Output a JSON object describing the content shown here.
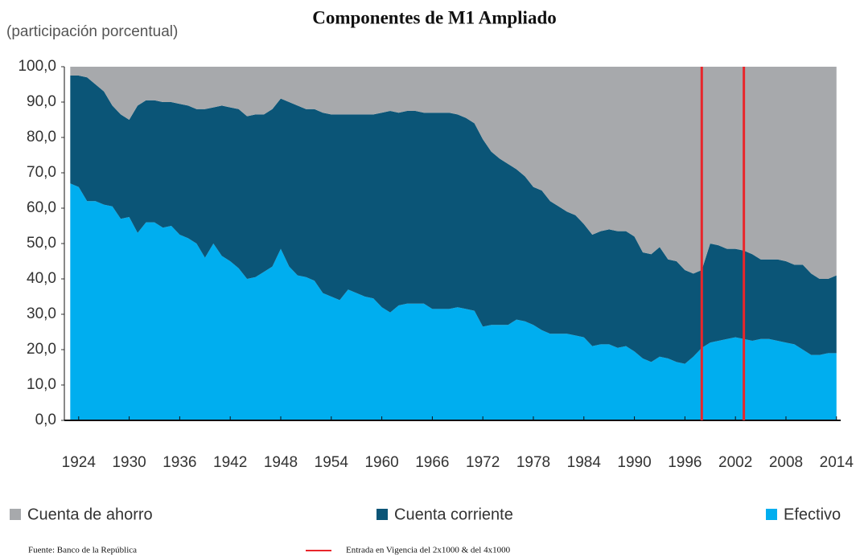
{
  "chart_data": {
    "type": "stacked-area",
    "title": "Componentes de M1 Ampliado",
    "subtitle": "(participación porcentual)",
    "source": "Fuente: Banco de la República",
    "x": [
      1923,
      1924,
      1925,
      1926,
      1927,
      1928,
      1929,
      1930,
      1931,
      1932,
      1933,
      1934,
      1935,
      1936,
      1937,
      1938,
      1939,
      1940,
      1941,
      1942,
      1943,
      1944,
      1945,
      1946,
      1947,
      1948,
      1949,
      1950,
      1951,
      1952,
      1953,
      1954,
      1955,
      1956,
      1957,
      1958,
      1959,
      1960,
      1961,
      1962,
      1963,
      1964,
      1965,
      1966,
      1967,
      1968,
      1969,
      1970,
      1971,
      1972,
      1973,
      1974,
      1975,
      1976,
      1977,
      1978,
      1979,
      1980,
      1981,
      1982,
      1983,
      1984,
      1985,
      1986,
      1987,
      1988,
      1989,
      1990,
      1991,
      1992,
      1993,
      1994,
      1995,
      1996,
      1997,
      1998,
      1999,
      2000,
      2001,
      2002,
      2003,
      2004,
      2005,
      2006,
      2007,
      2008,
      2009,
      2010,
      2011,
      2012,
      2013,
      2014
    ],
    "series": [
      {
        "name": "Cuenta de ahorro",
        "color": "#a7a9ac",
        "values": [
          2.5,
          2.5,
          3,
          5,
          7,
          11,
          13.5,
          15,
          11,
          9.5,
          9.5,
          10,
          10,
          10.5,
          11,
          12,
          12,
          11.5,
          11,
          11.5,
          12,
          14,
          13.5,
          13.5,
          12,
          9,
          10,
          11,
          12,
          12,
          13,
          13.5,
          13.5,
          13.5,
          13.5,
          13.5,
          13.5,
          13,
          12.5,
          13,
          12.5,
          12.5,
          13,
          13,
          13,
          13,
          13.5,
          14.5,
          16,
          20.5,
          24,
          26,
          27.5,
          29,
          31,
          34,
          35,
          38,
          39.5,
          41,
          42,
          44.5,
          47.5,
          46.5,
          46,
          46.5,
          46.5,
          48,
          52.5,
          53,
          51,
          54.5,
          55,
          57.5,
          58.5,
          57.5,
          50,
          50.5,
          51.5,
          51.5,
          52,
          53,
          54.5,
          54.5,
          54.5,
          55,
          56,
          56,
          58.5,
          60,
          60,
          59
        ]
      },
      {
        "name": "Cuenta corriente",
        "color": "#0b5577",
        "values": [
          30.5,
          31.5,
          35,
          33,
          32,
          28.5,
          29.5,
          27.5,
          36,
          34.5,
          34.5,
          35.5,
          35,
          37,
          37.5,
          38,
          42,
          38.5,
          42.5,
          43.5,
          45,
          46,
          46,
          44.5,
          44.5,
          42.5,
          46.5,
          48,
          47.5,
          48.5,
          51,
          51.5,
          52.5,
          49.5,
          50.5,
          51.5,
          52,
          55,
          57,
          54.5,
          54.5,
          54.5,
          54,
          55.5,
          55.5,
          55.5,
          54.5,
          54,
          53,
          53,
          49,
          47,
          45.5,
          42.5,
          41,
          39,
          39.5,
          37.5,
          36,
          34.5,
          34,
          32,
          31.5,
          32,
          32.5,
          33,
          32.5,
          32.5,
          30,
          30.5,
          31,
          28,
          28.5,
          26.5,
          23.5,
          22,
          28,
          27,
          25.5,
          25,
          25,
          24.5,
          22.5,
          22.5,
          23,
          23,
          22.5,
          24,
          23,
          21.5,
          21,
          22
        ]
      },
      {
        "name": "Efectivo",
        "color": "#00aeef",
        "values": [
          67,
          66,
          62,
          62,
          61,
          60.5,
          57,
          57.5,
          53,
          56,
          56,
          54.5,
          55,
          52.5,
          51.5,
          50,
          46,
          50,
          46.5,
          45,
          43,
          40,
          40.5,
          42,
          43.5,
          48.5,
          43.5,
          41,
          40.5,
          39.5,
          36,
          35,
          34,
          37,
          36,
          35,
          34.5,
          32,
          30.5,
          32.5,
          33,
          33,
          33,
          31.5,
          31.5,
          31.5,
          32,
          31.5,
          31,
          26.5,
          27,
          27,
          27,
          28.5,
          28,
          27,
          25.5,
          24.5,
          24.5,
          24.5,
          24,
          23.5,
          21,
          21.5,
          21.5,
          20.5,
          21,
          19.5,
          17.5,
          16.5,
          18,
          17.5,
          16.5,
          16,
          18,
          20.5,
          22,
          22.5,
          23,
          23.5,
          23,
          22.5,
          23,
          23,
          22.5,
          22,
          21.5,
          20,
          18.5,
          18.5,
          19,
          19
        ]
      }
    ],
    "xlim": [
      1922.3,
      2014.5
    ],
    "xticks": [
      1924,
      1930,
      1936,
      1942,
      1948,
      1954,
      1960,
      1966,
      1972,
      1978,
      1984,
      1990,
      1996,
      2002,
      2008,
      2014
    ],
    "ylim": [
      0,
      100
    ],
    "yticks": [
      {
        "value": 0,
        "label": "0,0"
      },
      {
        "value": 10,
        "label": "10,0"
      },
      {
        "value": 20,
        "label": "20,0"
      },
      {
        "value": 30,
        "label": "30,0"
      },
      {
        "value": 40,
        "label": "40,0"
      },
      {
        "value": 50,
        "label": "50,0"
      },
      {
        "value": 60,
        "label": "60,0"
      },
      {
        "value": 70,
        "label": "70,0"
      },
      {
        "value": 80,
        "label": "80,0"
      },
      {
        "value": 90,
        "label": "90,0"
      },
      {
        "value": 100,
        "label": "100,0"
      }
    ],
    "legend": "bottom",
    "reference_lines": {
      "label": "Entrada en Vigencia del 2x1000 & del 4x1000",
      "color": "#e8262b",
      "x": [
        1998,
        2003
      ]
    }
  }
}
